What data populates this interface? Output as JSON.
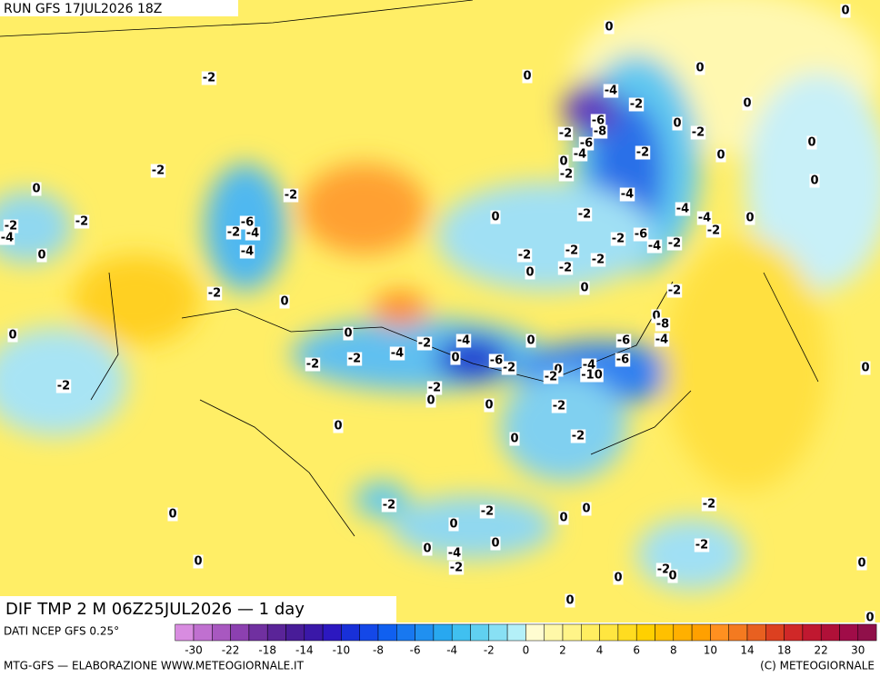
{
  "header": {
    "run": "RUN GFS 17JUL2026 18Z"
  },
  "map": {
    "title": "DIF TMP 2 M 06Z25JUL2026 — 1 day",
    "contour_labels": [
      -2,
      0,
      0,
      0,
      0,
      0,
      0,
      0,
      0,
      -4,
      -2,
      -6,
      -8,
      -2,
      -6,
      -4,
      0,
      -2,
      -2,
      0,
      -2,
      -2,
      0,
      -2,
      -6,
      -2,
      -4,
      -4,
      -2,
      -4,
      -2,
      0,
      0,
      -2,
      -4,
      -4,
      -4,
      -2,
      0,
      -2,
      -6,
      -4,
      -2,
      -2,
      -2,
      -2,
      0,
      -2,
      0,
      -2,
      0,
      -2,
      0,
      -8,
      -4,
      -6,
      -6,
      -4,
      -10,
      0,
      -2,
      0,
      -2,
      -6,
      -4,
      0,
      -2,
      -4,
      0,
      -2,
      -2,
      0,
      -2,
      -2,
      0,
      0,
      -2,
      -2,
      0,
      0,
      -2,
      -2,
      0,
      0,
      0,
      0,
      0,
      -4,
      -2,
      -2,
      -2,
      -2,
      0,
      0,
      0,
      0,
      0,
      0,
      0,
      0
    ]
  },
  "legend": {
    "source": "DATI NCEP GFS 0.25°",
    "colors": [
      "#d88ce0",
      "#c070d0",
      "#a858c0",
      "#8c40b0",
      "#7030a0",
      "#5a2498",
      "#481c98",
      "#3a18a8",
      "#2c18c0",
      "#1830d8",
      "#1448e8",
      "#1060f0",
      "#1878f0",
      "#2090f0",
      "#28a8f0",
      "#40c0f0",
      "#60d0f0",
      "#88e0f4",
      "#b4f0f8",
      "#fffcd0",
      "#fff8a8",
      "#fff488",
      "#ffee60",
      "#ffe640",
      "#ffdc20",
      "#ffd000",
      "#ffc000",
      "#ffb000",
      "#ffa000",
      "#ff9020",
      "#f47a20",
      "#e86020",
      "#dc4020",
      "#d02828",
      "#c01830",
      "#b01038",
      "#a00c48",
      "#90104a"
    ],
    "ticks": [
      -30,
      -22,
      -18,
      -14,
      -10,
      -8,
      -6,
      -4,
      -2,
      0,
      2,
      4,
      6,
      8,
      10,
      14,
      18,
      22,
      30
    ]
  },
  "footer": {
    "left": "MTG-GFS — ELABORAZIONE WWW.METEOGIORNALE.IT",
    "right": "(C) METEOGIORNALE"
  }
}
